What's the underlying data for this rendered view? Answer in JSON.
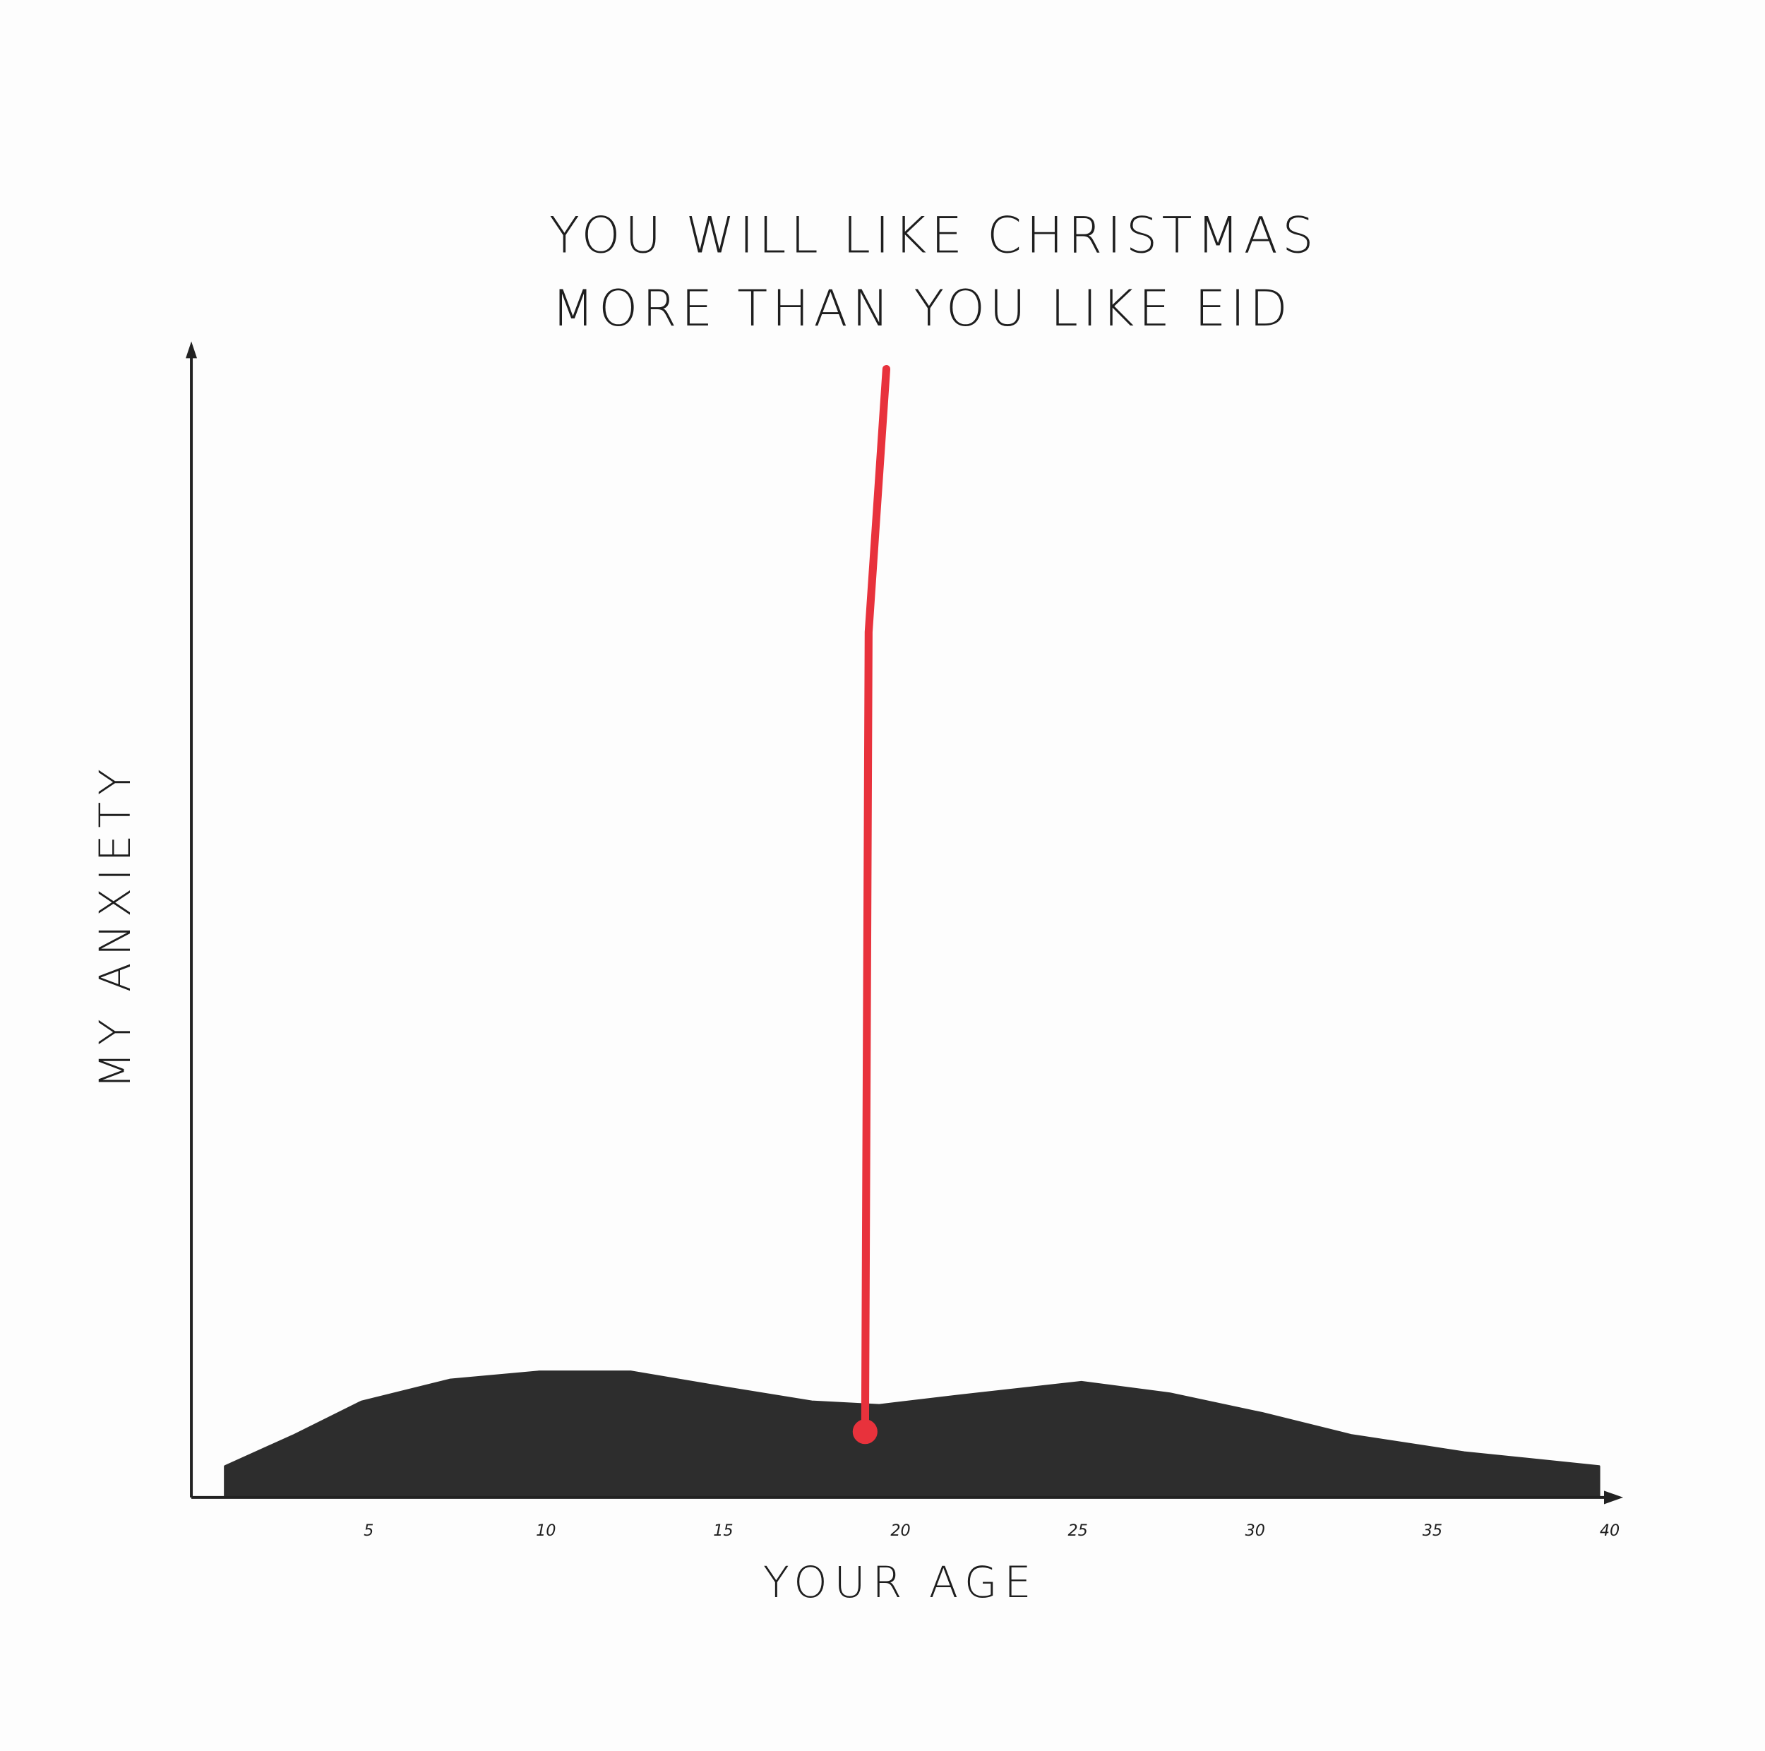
{
  "chart_data": {
    "type": "area",
    "title": [
      "YOU WILL LIKE CHRISTMAS",
      "MORE THAN YOU LIKE EID"
    ],
    "xlabel": "YOUR AGE",
    "ylabel": "MY ANXIETY",
    "xlim": [
      0,
      40.3
    ],
    "xticks": [
      5,
      10,
      15,
      20,
      25,
      30,
      35,
      40
    ],
    "ylim": [
      0,
      100
    ],
    "series": [
      {
        "type": "area",
        "color": "#222222",
        "x": [
          0.95,
          2.9,
          4.8,
          7.3,
          9.8,
          12.4,
          14.9,
          17.5,
          19.4,
          21.6,
          25.1,
          27.6,
          30.2,
          32.7,
          35.9,
          39.7
        ],
        "values": [
          2.7,
          5.4,
          8.3,
          10.2,
          10.9,
          10.9,
          9.6,
          8.3,
          8.0,
          8.8,
          10.0,
          9.0,
          7.3,
          5.4,
          3.9,
          2.7
        ]
      },
      {
        "type": "line",
        "color": "#e8323c",
        "marker_start": true,
        "x": [
          19.0,
          19.1,
          19.6
        ],
        "values": [
          5.7,
          75,
          97.8
        ]
      }
    ]
  }
}
